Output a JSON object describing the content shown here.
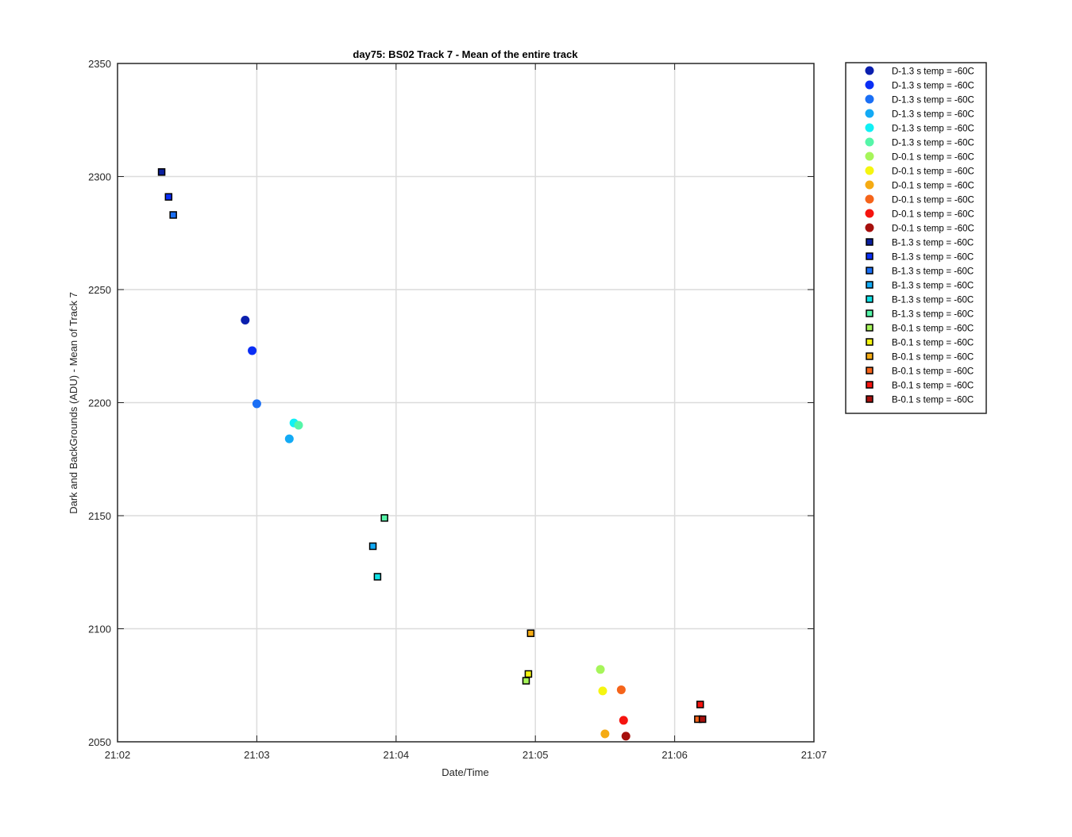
{
  "chart_data": {
    "type": "scatter",
    "title": "day75: BS02  Track 7 - Mean of the entire track",
    "xlabel": "Date/Time",
    "ylabel": "Dark and BackGrounds (ADU) - Mean of Track 7",
    "xlim": [
      "21:02",
      "21:07"
    ],
    "ylim": [
      2050,
      2350
    ],
    "x_ticks": [
      "21:02",
      "21:03",
      "21:04",
      "21:05",
      "21:06",
      "21:07"
    ],
    "y_ticks": [
      2050,
      2100,
      2150,
      2200,
      2250,
      2300,
      2350
    ],
    "grid": true,
    "legend_position": "outside-right-top",
    "series": [
      {
        "name": "D-1.3 s temp = -60C",
        "marker": "circle",
        "color": "#0a1fae",
        "points": [
          {
            "x": "21:02:55",
            "y": 2236.5
          }
        ]
      },
      {
        "name": "D-1.3 s temp = -60C",
        "marker": "circle",
        "color": "#0a2ef5",
        "points": [
          {
            "x": "21:02:58",
            "y": 2223
          }
        ]
      },
      {
        "name": "D-1.3 s temp = -60C",
        "marker": "circle",
        "color": "#1a6ff5",
        "points": [
          {
            "x": "21:03:00",
            "y": 2199.5
          }
        ]
      },
      {
        "name": "D-1.3 s temp = -60C",
        "marker": "circle",
        "color": "#13aaf5",
        "points": [
          {
            "x": "21:03:14",
            "y": 2184
          }
        ]
      },
      {
        "name": "D-1.3 s temp = -60C",
        "marker": "circle",
        "color": "#10f0f5",
        "points": [
          {
            "x": "21:03:16",
            "y": 2191
          }
        ]
      },
      {
        "name": "D-1.3 s temp = -60C",
        "marker": "circle",
        "color": "#55f5a8",
        "points": [
          {
            "x": "21:03:18",
            "y": 2190
          }
        ]
      },
      {
        "name": "D-0.1 s temp = -60C",
        "marker": "circle",
        "color": "#a6f55a",
        "points": [
          {
            "x": "21:05:28",
            "y": 2082
          }
        ]
      },
      {
        "name": "D-0.1 s temp = -60C",
        "marker": "circle",
        "color": "#f5f510",
        "points": [
          {
            "x": "21:05:29",
            "y": 2072.5
          }
        ]
      },
      {
        "name": "D-0.1 s temp = -60C",
        "marker": "circle",
        "color": "#f5ab13",
        "points": [
          {
            "x": "21:05:30",
            "y": 2053.5
          }
        ]
      },
      {
        "name": "D-0.1 s temp = -60C",
        "marker": "circle",
        "color": "#f5641a",
        "points": [
          {
            "x": "21:05:37",
            "y": 2073
          }
        ]
      },
      {
        "name": "D-0.1 s temp = -60C",
        "marker": "circle",
        "color": "#f5140f",
        "points": [
          {
            "x": "21:05:38",
            "y": 2059.5
          }
        ]
      },
      {
        "name": "D-0.1 s temp = -60C",
        "marker": "circle",
        "color": "#a6100d",
        "points": [
          {
            "x": "21:05:39",
            "y": 2052.5
          }
        ]
      },
      {
        "name": "B-1.3 s temp = -60C",
        "marker": "square",
        "color": "#0a1f9e",
        "points": [
          {
            "x": "21:02:19",
            "y": 2302
          }
        ]
      },
      {
        "name": "B-1.3 s temp = -60C",
        "marker": "square",
        "color": "#0a2ef5",
        "points": [
          {
            "x": "21:02:22",
            "y": 2291
          }
        ]
      },
      {
        "name": "B-1.3 s temp = -60C",
        "marker": "square",
        "color": "#1a6ff5",
        "points": [
          {
            "x": "21:02:24",
            "y": 2283
          }
        ]
      },
      {
        "name": "B-1.3 s temp = -60C",
        "marker": "square",
        "color": "#13aaf5",
        "points": [
          {
            "x": "21:03:50",
            "y": 2136.5
          }
        ]
      },
      {
        "name": "B-1.3 s temp = -60C",
        "marker": "square",
        "color": "#10e0e5",
        "points": [
          {
            "x": "21:03:52",
            "y": 2123
          }
        ]
      },
      {
        "name": "B-1.3 s temp = -60C",
        "marker": "square",
        "color": "#55f5a8",
        "points": [
          {
            "x": "21:03:55",
            "y": 2149
          }
        ]
      },
      {
        "name": "B-0.1 s temp = -60C",
        "marker": "square",
        "color": "#a6f55a",
        "points": [
          {
            "x": "21:04:56",
            "y": 2077
          }
        ]
      },
      {
        "name": "B-0.1 s temp = -60C",
        "marker": "square",
        "color": "#f5f510",
        "points": [
          {
            "x": "21:04:57",
            "y": 2080
          }
        ]
      },
      {
        "name": "B-0.1 s temp = -60C",
        "marker": "square",
        "color": "#f5ab13",
        "points": [
          {
            "x": "21:04:58",
            "y": 2098
          }
        ]
      },
      {
        "name": "B-0.1 s temp = -60C",
        "marker": "square",
        "color": "#f5641a",
        "points": [
          {
            "x": "21:06:10",
            "y": 2060
          }
        ]
      },
      {
        "name": "B-0.1 s temp = -60C",
        "marker": "square",
        "color": "#f5140f",
        "points": [
          {
            "x": "21:06:11",
            "y": 2066.5
          }
        ]
      },
      {
        "name": "B-0.1 s temp = -60C",
        "marker": "square",
        "color": "#a6100d",
        "points": [
          {
            "x": "21:06:12",
            "y": 2060
          }
        ]
      }
    ]
  }
}
